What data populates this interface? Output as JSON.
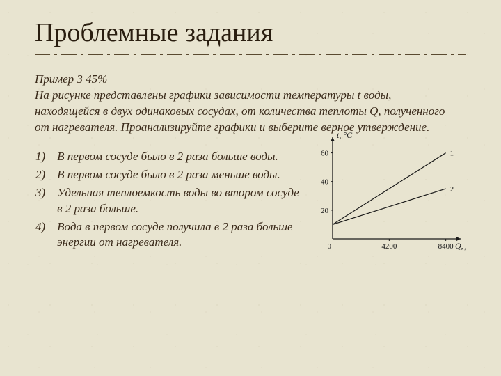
{
  "title": "Проблемные задания",
  "example_label": "Пример 3   45%",
  "intro_text": "На рисунке представлены графики зависимости температуры t воды, находящейся в двух одинаковых сосудах, от  количества теплоты Q, полученного от нагревателя. Проанализируйте графики и выберите верное утверждение.",
  "options": [
    {
      "num": "1)",
      "text": "В первом сосуде было в 2 раза больше воды."
    },
    {
      "num": "2)",
      "text": "В первом сосуде было в 2 раза меньше воды."
    },
    {
      "num": "3)",
      "text": "Удельная теплоемкость воды во втором сосуде в 2 раза больше."
    },
    {
      "num": "4)",
      "text": "Вода в первом сосуде получила в 2 раза больше энергии от нагревателя."
    }
  ],
  "chart": {
    "type": "line",
    "background_color": "#e8e4d0",
    "axis_color": "#1a1a1a",
    "line_color": "#1a1a1a",
    "line_width": 1.2,
    "y_label": "t, °C",
    "x_label": "Q, Дж",
    "origin_label": "0",
    "x_ticks": [
      {
        "value": 4200,
        "label": "4200"
      },
      {
        "value": 8400,
        "label": "8400"
      }
    ],
    "y_ticks": [
      {
        "value": 20,
        "label": "20"
      },
      {
        "value": 40,
        "label": "40"
      },
      {
        "value": 60,
        "label": "60"
      }
    ],
    "xlim": [
      0,
      9400
    ],
    "ylim": [
      0,
      70
    ],
    "series": [
      {
        "label": "1",
        "points": [
          [
            0,
            10
          ],
          [
            8400,
            60
          ]
        ]
      },
      {
        "label": "2",
        "points": [
          [
            0,
            10
          ],
          [
            8400,
            35
          ]
        ]
      }
    ]
  },
  "colors": {
    "bg": "#e8e4d0",
    "text": "#3a2a1a",
    "divider": "#5a4a30"
  },
  "fonts": {
    "title_size_pt": 30,
    "body_size_pt": 13,
    "body_style": "italic",
    "family": "Times New Roman / Georgia serif"
  }
}
